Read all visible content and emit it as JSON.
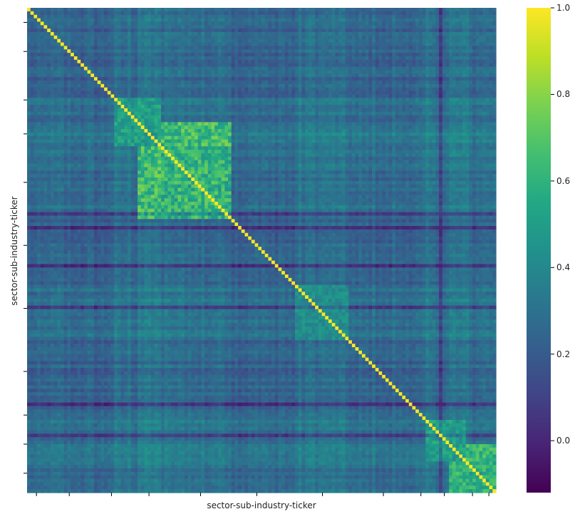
{
  "chart_data": {
    "type": "heatmap",
    "title": "",
    "xlabel": "sector-sub-industry-ticker",
    "ylabel": "sector-sub-industry-ticker",
    "tick_labels_shown": false,
    "matrix_kind": "correlation",
    "colormap": "viridis",
    "colorbar": {
      "vmin": -0.12,
      "vmax": 1.0,
      "ticks": [
        0.0,
        0.2,
        0.4,
        0.6,
        0.8,
        1.0
      ],
      "tick_labels": [
        "0.0",
        "0.2",
        "0.4",
        "0.6",
        "0.8",
        "1.0"
      ]
    },
    "diagonal_value": 1.0,
    "typical_offdiagonal_range": [
      0.1,
      0.35
    ],
    "high_correlation_blocks": [
      {
        "rows_range_fraction": [
          0.23,
          0.43
        ],
        "cols_range_fraction": [
          0.23,
          0.43
        ],
        "value_range": [
          0.45,
          0.75
        ]
      },
      {
        "rows_range_fraction": [
          0.18,
          0.28
        ],
        "cols_range_fraction": [
          0.18,
          0.28
        ],
        "value_range": [
          0.4,
          0.6
        ]
      },
      {
        "rows_range_fraction": [
          0.9,
          1.0
        ],
        "cols_range_fraction": [
          0.9,
          1.0
        ],
        "value_range": [
          0.45,
          0.7
        ]
      },
      {
        "rows_range_fraction": [
          0.85,
          0.93
        ],
        "cols_range_fraction": [
          0.85,
          0.93
        ],
        "value_range": [
          0.4,
          0.6
        ]
      },
      {
        "rows_range_fraction": [
          0.57,
          0.68
        ],
        "cols_range_fraction": [
          0.57,
          0.68
        ],
        "value_range": [
          0.35,
          0.5
        ]
      }
    ]
  },
  "colors": {
    "viridis_low": "#440154",
    "viridis_mid": "#21918c",
    "viridis_high": "#fde725",
    "axis": "#000000",
    "text": "#222222"
  }
}
